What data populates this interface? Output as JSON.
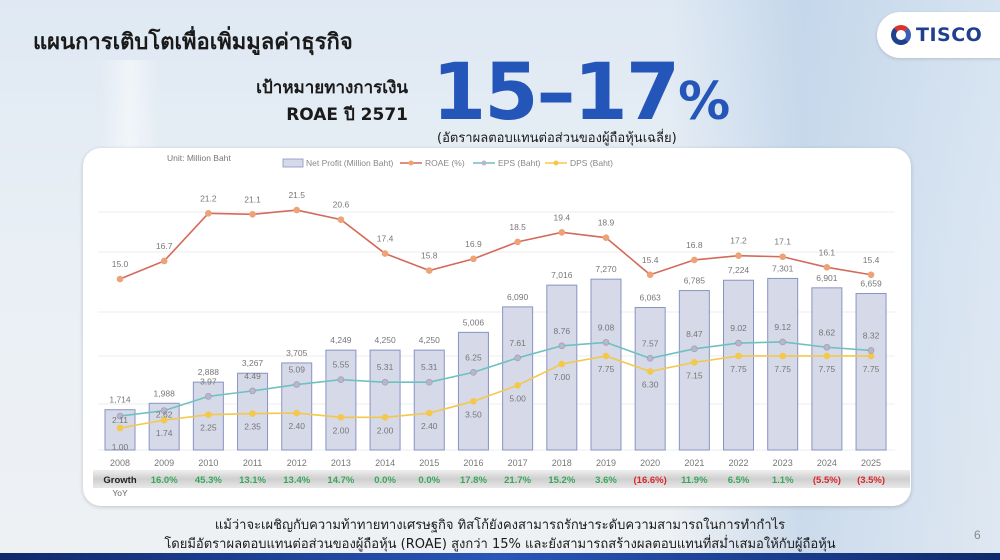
{
  "page": {
    "title": "แผนการเติบโตเพื่อเพิ่มมูลค่าธุรกิจ",
    "logo_text": "TISCO",
    "page_number": "6"
  },
  "target": {
    "label_line1": "เป้าหมายทางการเงิน",
    "label_line2": "ROAE ปี 2571",
    "value": "15–17",
    "value_suffix": "%",
    "subtitle": "(อัตราผลตอบแทนต่อส่วนของผู้ถือหุ้นเฉลี่ย)"
  },
  "footer": {
    "line1": "แม้ว่าจะเผชิญกับความท้าทายทางเศรษฐกิจ ทิสโก้ยังคงสามารถรักษาระดับความสามารถในการทำกำไร",
    "line2": "โดยมีอัตราผลตอบแทนต่อส่วนของผู้ถือหุ้น (ROAE) สูงกว่า 15% และยังสามารถสร้างผลตอบแทนที่สม่ำเสมอให้กับผู้ถือหุ้น"
  },
  "colors": {
    "bar_fill": "#d5d9e8",
    "bar_stroke": "#8a93c4",
    "roae": "#d46a5a",
    "roae_marker": "#eda277",
    "eps": "#6fc1c0",
    "eps_marker": "#b8b6cc",
    "dps": "#f3c84c",
    "growth_positive": "#3aa65a",
    "growth_negative": "#d9262b",
    "target_blue": "#2455b8"
  },
  "chart_data": {
    "type": "bar",
    "title": "",
    "unit_label": "Unit: Million Baht",
    "xlabel": "",
    "ylabel": "",
    "categories": [
      "2008",
      "2009",
      "2010",
      "2011",
      "2012",
      "2013",
      "2014",
      "2015",
      "2016",
      "2017",
      "2018",
      "2019",
      "2020",
      "2021",
      "2022",
      "2023",
      "2024",
      "2025"
    ],
    "legend": [
      "Net Profit (Million Baht)",
      "ROAE (%)",
      "EPS (Baht)",
      "DPS (Baht)"
    ],
    "legend_position": "top",
    "grid": true,
    "series": [
      {
        "name": "Net Profit (Million Baht)",
        "type": "bar",
        "values": [
          1714,
          1988,
          2888,
          3267,
          3705,
          4249,
          4250,
          4250,
          5006,
          6090,
          7016,
          7270,
          6063,
          6785,
          7224,
          7301,
          6901,
          6659
        ],
        "labels": [
          "1,714",
          "1,988",
          "2,888",
          "3,267",
          "3,705",
          "4,249",
          "4,250",
          "4,250",
          "5,006",
          "6,090",
          "7,016",
          "7,270",
          "6,063",
          "6,785",
          "7,224",
          "7,301",
          "6,901",
          "6,659"
        ]
      },
      {
        "name": "ROAE (%)",
        "type": "line",
        "values": [
          15.0,
          16.7,
          21.2,
          21.1,
          21.5,
          20.6,
          17.4,
          15.8,
          16.9,
          18.5,
          19.4,
          18.9,
          15.4,
          16.8,
          17.2,
          17.1,
          16.1,
          15.4
        ]
      },
      {
        "name": "EPS (Baht)",
        "type": "line",
        "values": [
          2.11,
          2.62,
          3.97,
          4.49,
          5.09,
          5.55,
          5.31,
          5.31,
          6.25,
          7.61,
          8.76,
          9.08,
          7.57,
          8.47,
          9.02,
          9.12,
          8.62,
          8.32
        ]
      },
      {
        "name": "DPS (Baht)",
        "type": "line",
        "values": [
          1.0,
          1.74,
          2.25,
          2.35,
          2.4,
          2.0,
          2.0,
          2.4,
          3.5,
          5.0,
          7.0,
          7.75,
          6.3,
          7.15,
          7.75,
          7.75,
          7.75,
          7.75
        ]
      }
    ],
    "growth_row": {
      "label": "Growth",
      "sublabel": "YoY",
      "values": [
        "",
        "16.0%",
        "45.3%",
        "13.1%",
        "13.4%",
        "14.7%",
        "0.0%",
        "0.0%",
        "17.8%",
        "21.7%",
        "15.2%",
        "3.6%",
        "(16.6%)",
        "11.9%",
        "6.5%",
        "1.1%",
        "(5.5%)",
        "(3.5%)"
      ],
      "negative": [
        false,
        false,
        false,
        false,
        false,
        false,
        false,
        false,
        false,
        false,
        false,
        false,
        true,
        false,
        false,
        false,
        true,
        true
      ]
    }
  }
}
